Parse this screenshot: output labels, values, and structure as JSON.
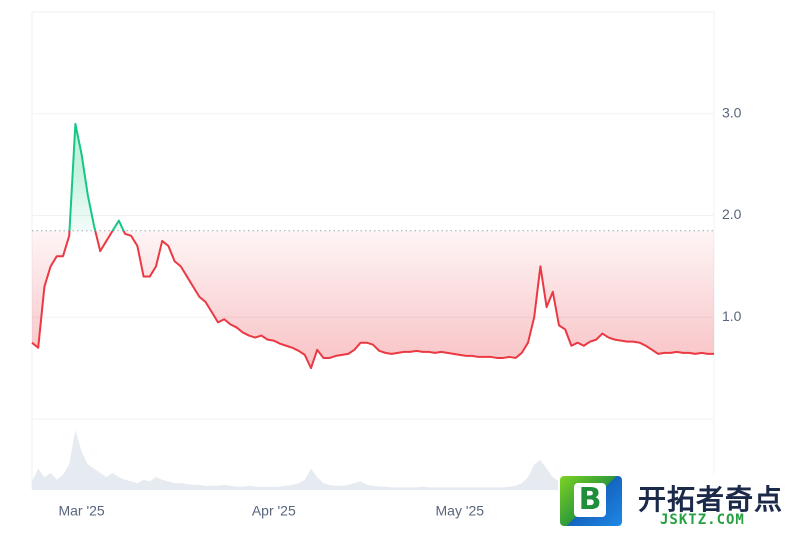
{
  "chart_data": {
    "type": "line",
    "categories": [
      null,
      null,
      null,
      null,
      null,
      null,
      null,
      null,
      "Mar '25",
      null,
      null,
      null,
      null,
      null,
      null,
      null,
      null,
      null,
      null,
      null,
      null,
      null,
      null,
      null,
      null,
      null,
      null,
      null,
      null,
      null,
      null,
      null,
      null,
      null,
      null,
      null,
      null,
      null,
      null,
      "Apr '25",
      null,
      null,
      null,
      null,
      null,
      null,
      null,
      null,
      null,
      null,
      null,
      null,
      null,
      null,
      null,
      null,
      null,
      null,
      null,
      null,
      null,
      null,
      null,
      null,
      null,
      null,
      null,
      null,
      null,
      "May '25",
      null,
      null,
      null,
      null,
      null,
      null,
      null,
      null,
      null,
      null,
      null,
      null,
      null,
      null,
      null,
      null,
      null,
      null,
      null,
      null,
      null,
      null,
      null,
      null,
      null,
      null,
      null,
      null,
      null,
      null,
      null,
      null,
      null,
      null,
      null,
      null,
      null,
      null,
      null,
      null,
      null
    ],
    "values": [
      0.75,
      0.7,
      1.3,
      1.5,
      1.6,
      1.6,
      1.8,
      2.9,
      2.6,
      2.2,
      1.9,
      1.65,
      1.75,
      1.85,
      1.95,
      1.82,
      1.8,
      1.7,
      1.4,
      1.4,
      1.5,
      1.75,
      1.7,
      1.55,
      1.5,
      1.4,
      1.3,
      1.2,
      1.15,
      1.05,
      0.95,
      0.98,
      0.93,
      0.9,
      0.85,
      0.82,
      0.8,
      0.82,
      0.78,
      0.77,
      0.74,
      0.72,
      0.7,
      0.67,
      0.63,
      0.5,
      0.68,
      0.6,
      0.6,
      0.62,
      0.63,
      0.64,
      0.68,
      0.75,
      0.75,
      0.73,
      0.67,
      0.65,
      0.64,
      0.65,
      0.66,
      0.66,
      0.67,
      0.66,
      0.66,
      0.65,
      0.66,
      0.65,
      0.64,
      0.63,
      0.62,
      0.62,
      0.61,
      0.61,
      0.61,
      0.6,
      0.6,
      0.61,
      0.6,
      0.65,
      0.75,
      1.0,
      1.5,
      1.1,
      1.25,
      0.92,
      0.88,
      0.72,
      0.75,
      0.72,
      0.76,
      0.78,
      0.84,
      0.8,
      0.78,
      0.77,
      0.76,
      0.76,
      0.75,
      0.72,
      0.68,
      0.64,
      0.65,
      0.65,
      0.66,
      0.65,
      0.65,
      0.64,
      0.65,
      0.64,
      0.64
    ],
    "volume": [
      10,
      25,
      15,
      20,
      12,
      18,
      30,
      70,
      45,
      30,
      25,
      20,
      15,
      20,
      15,
      12,
      10,
      8,
      12,
      10,
      15,
      12,
      10,
      8,
      8,
      7,
      6,
      6,
      5,
      5,
      5,
      6,
      5,
      4,
      4,
      5,
      4,
      4,
      4,
      4,
      4,
      5,
      6,
      8,
      12,
      25,
      15,
      8,
      6,
      5,
      5,
      6,
      8,
      10,
      6,
      5,
      4,
      4,
      3,
      3,
      3,
      3,
      3,
      4,
      3,
      3,
      3,
      3,
      3,
      3,
      3,
      3,
      3,
      3,
      3,
      3,
      3,
      4,
      5,
      8,
      15,
      30,
      35,
      25,
      15,
      10,
      8,
      6,
      5,
      5,
      5,
      6,
      6,
      5,
      4,
      4,
      4,
      4,
      4,
      4,
      4,
      4,
      3,
      3,
      3,
      3,
      3,
      3,
      3,
      3,
      3
    ],
    "reference_line": 1.85,
    "up_color": "#16c784",
    "down_color": "#ea3943",
    "volume_color": "#e6ebf2",
    "ylim": [
      0,
      4
    ],
    "yticks": [
      {
        "value": 1,
        "label": "1.0"
      },
      {
        "value": 2,
        "label": "2.0"
      },
      {
        "value": 3,
        "label": "3.0"
      }
    ],
    "grid": true
  },
  "watermark": {
    "logo": "B",
    "name": "开拓者奇点",
    "site": "JSKTZ.COM"
  }
}
